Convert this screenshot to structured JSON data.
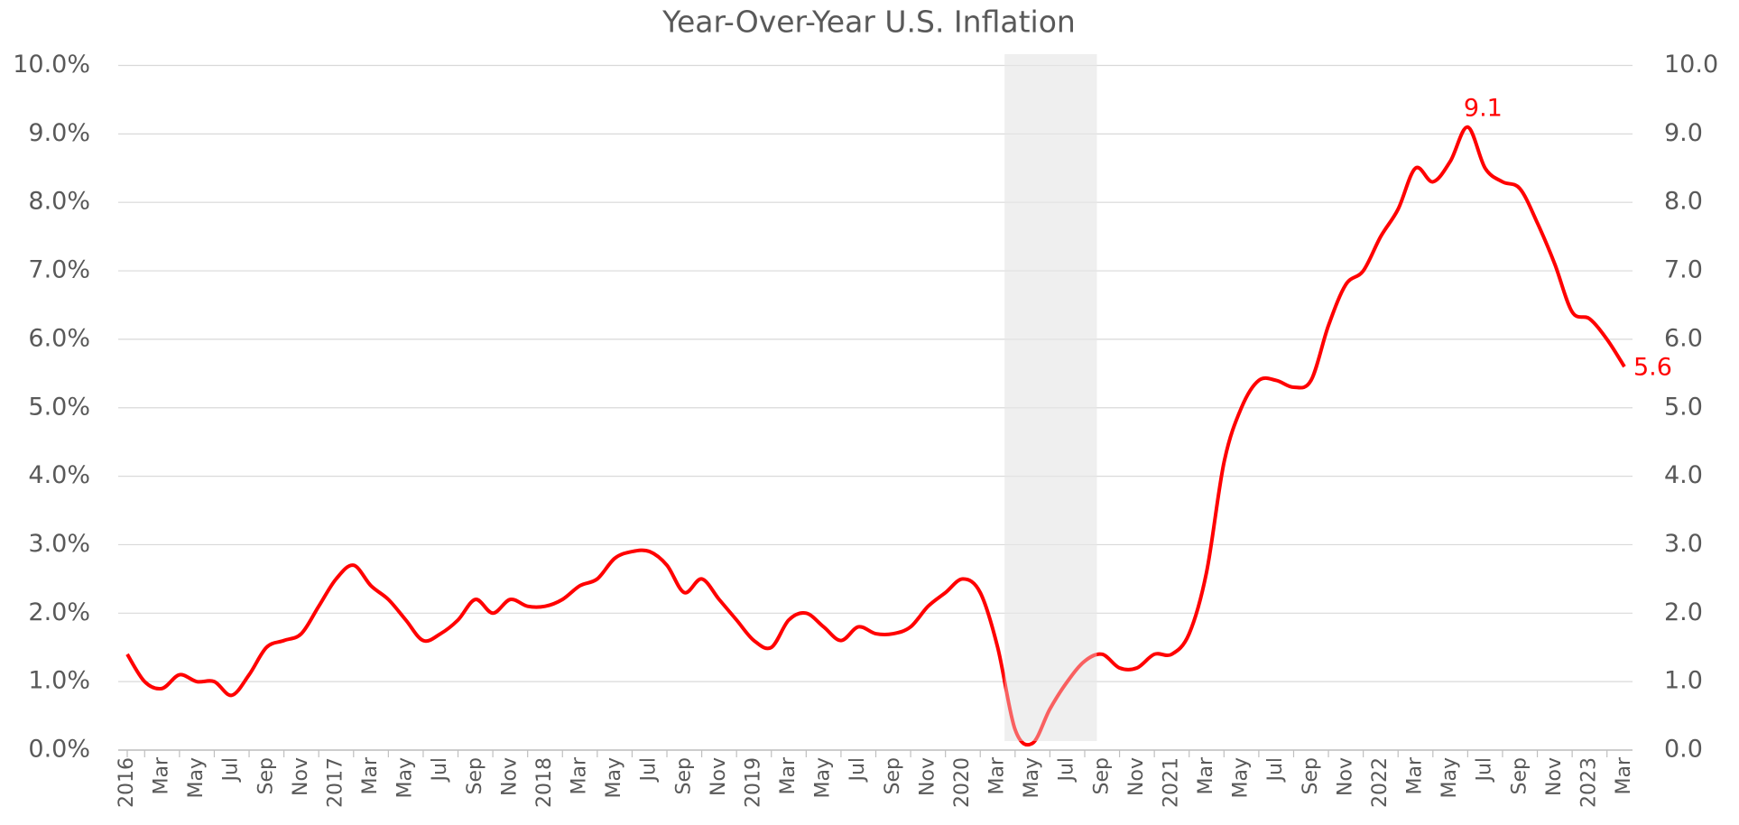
{
  "chart_data": {
    "type": "line",
    "title": "Year-Over-Year U.S. Inflation",
    "categories": [
      "2016",
      null,
      "Mar",
      null,
      "May",
      null,
      "Jul",
      null,
      "Sep",
      null,
      "Nov",
      null,
      "2017",
      null,
      "Mar",
      null,
      "May",
      null,
      "Jul",
      null,
      "Sep",
      null,
      "Nov",
      null,
      "2018",
      null,
      "Mar",
      null,
      "May",
      null,
      "Jul",
      null,
      "Sep",
      null,
      "Nov",
      null,
      "2019",
      null,
      "Mar",
      null,
      "May",
      null,
      "Jul",
      null,
      "Sep",
      null,
      "Nov",
      null,
      "2020",
      null,
      "Mar",
      null,
      "May",
      null,
      "Jul",
      null,
      "Sep",
      null,
      "Nov",
      null,
      "2021",
      null,
      "Mar",
      null,
      "May",
      null,
      "Jul",
      null,
      "Sep",
      null,
      "Nov",
      null,
      "2022",
      null,
      "Mar",
      null,
      "May",
      null,
      "Jul",
      null,
      "Sep",
      null,
      "Nov",
      null,
      "2023",
      null,
      "Mar"
    ],
    "series": [
      {
        "name": "Inflation",
        "color": "#ff0000",
        "values": [
          1.4,
          1.0,
          0.9,
          1.1,
          1.0,
          1.0,
          0.8,
          1.1,
          1.5,
          1.6,
          1.7,
          2.1,
          2.5,
          2.7,
          2.4,
          2.2,
          1.9,
          1.6,
          1.7,
          1.9,
          2.2,
          2.0,
          2.2,
          2.1,
          2.1,
          2.2,
          2.4,
          2.5,
          2.8,
          2.9,
          2.9,
          2.7,
          2.3,
          2.5,
          2.2,
          1.9,
          1.6,
          1.5,
          1.9,
          2.0,
          1.8,
          1.6,
          1.8,
          1.7,
          1.7,
          1.8,
          2.1,
          2.3,
          2.5,
          2.3,
          1.5,
          0.3,
          0.1,
          0.6,
          1.0,
          1.3,
          1.4,
          1.2,
          1.2,
          1.4,
          1.4,
          1.7,
          2.6,
          4.2,
          5.0,
          5.4,
          5.4,
          5.3,
          5.4,
          6.2,
          6.8,
          7.0,
          7.5,
          7.9,
          8.5,
          8.3,
          8.6,
          9.1,
          8.5,
          8.3,
          8.2,
          7.7,
          7.1,
          6.4,
          6.3,
          6.0,
          5.6
        ]
      }
    ],
    "ylim": [
      0,
      10
    ],
    "yticks": [
      {
        "value": 0,
        "label": "0.0%"
      },
      {
        "value": 1,
        "label": "1.0%"
      },
      {
        "value": 2,
        "label": "2.0%"
      },
      {
        "value": 3,
        "label": "3.0%"
      },
      {
        "value": 4,
        "label": "4.0%"
      },
      {
        "value": 5,
        "label": "5.0%"
      },
      {
        "value": 6,
        "label": "6.0%"
      },
      {
        "value": 7,
        "label": "7.0%"
      },
      {
        "value": 8,
        "label": "8.0%"
      },
      {
        "value": 9,
        "label": "9.0%"
      },
      {
        "value": 10,
        "label": "10.0%"
      }
    ],
    "y2lim": [
      0,
      10
    ],
    "y2ticks": [
      {
        "value": 0,
        "label": "0.0"
      },
      {
        "value": 1,
        "label": "1.0"
      },
      {
        "value": 2,
        "label": "2.0"
      },
      {
        "value": 3,
        "label": "3.0"
      },
      {
        "value": 4,
        "label": "4.0"
      },
      {
        "value": 5,
        "label": "5.0"
      },
      {
        "value": 6,
        "label": "6.0"
      },
      {
        "value": 7,
        "label": "7.0"
      },
      {
        "value": 8,
        "label": "8.0"
      },
      {
        "value": 9,
        "label": "9.0"
      },
      {
        "value": 10,
        "label": "10.0"
      }
    ],
    "grid": true
  }
}
